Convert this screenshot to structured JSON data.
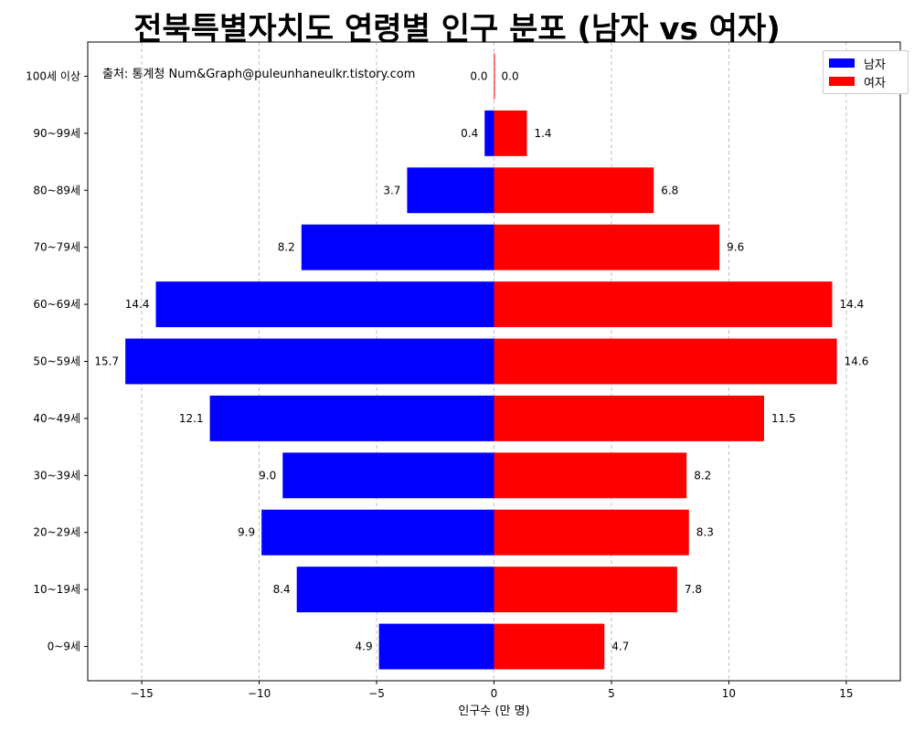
{
  "chart_data": {
    "type": "bar",
    "orientation": "horizontal",
    "title": "전북특별자치도 연령별 인구 분포 (남자 vs 여자)",
    "annotation": "출처: 통계청 Num&Graph@puleunhaneulkr.tistory.com",
    "xlabel": "인구수 (만 명)",
    "ylabel": "",
    "xlim": [
      -17.3,
      17.3
    ],
    "xticks": [
      -15,
      -10,
      -5,
      0,
      5,
      10,
      15
    ],
    "xtick_labels": [
      "−15",
      "−10",
      "−5",
      "0",
      "5",
      "10",
      "15"
    ],
    "grid": "x-dashed",
    "legend_position": "top-right",
    "categories": [
      "0~9세",
      "10~19세",
      "20~29세",
      "30~39세",
      "40~49세",
      "50~59세",
      "60~69세",
      "70~79세",
      "80~89세",
      "90~99세",
      "100세 이상"
    ],
    "series": [
      {
        "name": "남자",
        "color": "#0000ff",
        "values": [
          4.9,
          8.4,
          9.9,
          9.0,
          12.1,
          15.7,
          14.4,
          8.2,
          3.7,
          0.4,
          0.0
        ],
        "labels": [
          "4.9",
          "8.4",
          "9.9",
          "9.0",
          "12.1",
          "15.7",
          "14.4",
          "8.2",
          "3.7",
          "0.4",
          "0.0"
        ]
      },
      {
        "name": "여자",
        "color": "#ff0000",
        "values": [
          4.7,
          7.8,
          8.3,
          8.2,
          11.5,
          14.6,
          14.4,
          9.6,
          6.8,
          1.4,
          0.0
        ],
        "labels": [
          "4.7",
          "7.8",
          "8.3",
          "8.2",
          "11.5",
          "14.6",
          "14.4",
          "9.6",
          "6.8",
          "1.4",
          "0.0"
        ]
      }
    ]
  }
}
